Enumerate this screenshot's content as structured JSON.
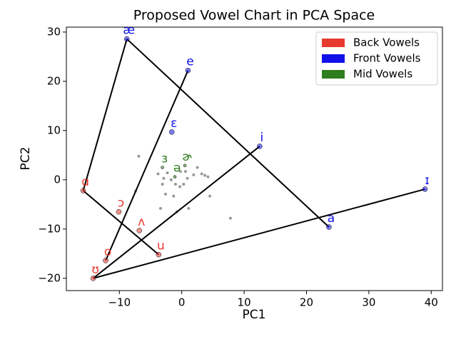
{
  "chart_data": {
    "type": "scatter",
    "title": "Proposed Vowel Chart in PCA Space",
    "x_label": "PC1",
    "y_label": "PC2",
    "xlim": [
      -18.5,
      41.8
    ],
    "ylim": [
      -22.5,
      31
    ],
    "xticks": [
      {
        "value": -10,
        "label": "−10"
      },
      0,
      10,
      20,
      30,
      40
    ],
    "yticks": [
      {
        "value": -20,
        "label": "−20"
      },
      {
        "value": -10,
        "label": "−10"
      },
      0,
      10,
      20,
      30
    ],
    "legend": "upper right",
    "series": [
      {
        "name": "Back Vowels",
        "color": "#e8392f",
        "labels": [
          "ɑ",
          "ɔ",
          "ʌ",
          "u",
          "o",
          "ʊ"
        ],
        "x": [
          -15.8,
          -10.1,
          -6.8,
          -3.7,
          -12.2,
          -14.2
        ],
        "y": [
          -2.2,
          -6.5,
          -10.3,
          -15.2,
          -16.4,
          -20.0
        ]
      },
      {
        "name": "Front Vowels",
        "color": "#1010e8",
        "labels": [
          "æ",
          "e",
          "ɛ",
          "i",
          "ɪ",
          "a"
        ],
        "x": [
          -8.8,
          1.0,
          -1.6,
          12.5,
          39.0,
          23.6
        ],
        "y": [
          28.6,
          22.2,
          9.7,
          6.8,
          -1.9,
          -9.6
        ]
      },
      {
        "name": "Mid Vowels",
        "color": "#2e7d1e",
        "labels": [
          "ɜ",
          "ɚ",
          "ə"
        ],
        "x": [
          -3.1,
          0.5,
          -1.1
        ],
        "y": [
          2.5,
          2.9,
          0.6
        ]
      }
    ],
    "connections": [
      [
        "ɑ",
        "æ"
      ],
      [
        "æ",
        "a"
      ],
      [
        "ɑ",
        "u"
      ],
      [
        "e",
        "o"
      ],
      [
        "i",
        "ʊ"
      ],
      [
        "ʊ",
        "ɪ"
      ]
    ],
    "background_points": {
      "color": "#999999",
      "x": [
        -6.9,
        -7.4,
        -3.8,
        -2.9,
        -2.3,
        -1.7,
        -2.6,
        -3.4,
        -0.8,
        1.1,
        -0.3,
        0.3,
        0.9,
        1.9,
        2.5,
        3.2,
        3.7,
        4.2,
        4.5,
        7.8,
        -0.2,
        -1.0,
        -3.1,
        0.6,
        -1.3
      ],
      "y": [
        4.8,
        -2.3,
        1.2,
        0.3,
        1.4,
        0,
        -2.9,
        -5.8,
        -6.5,
        -5.8,
        -1.4,
        -0.9,
        0.3,
        1.0,
        2.5,
        1.2,
        0.9,
        0.6,
        -3.3,
        -7.8,
        1.7,
        -0.9,
        -0.9,
        1.7,
        -3.3
      ]
    }
  }
}
